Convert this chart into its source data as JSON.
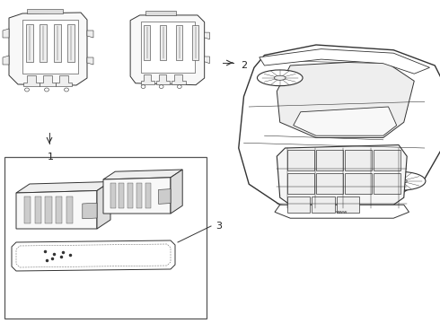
{
  "bg_color": "#ffffff",
  "line_color": "#333333",
  "med_line": "#555555",
  "light_line": "#888888",
  "fill_light": "#f8f8f8",
  "fill_mid": "#eeeeee",
  "fill_dark": "#dddddd",
  "fill_darker": "#cccccc",
  "label_color": "#222222",
  "figsize": [
    4.9,
    3.6
  ],
  "dpi": 100,
  "labels": [
    "1",
    "2",
    "3"
  ]
}
